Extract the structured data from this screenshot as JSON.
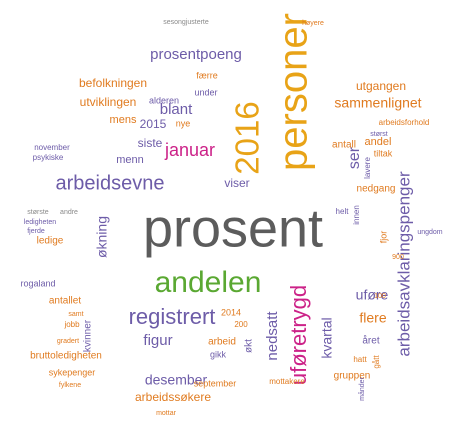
{
  "words": [
    "prosent",
    "personer",
    "2016",
    "andelen",
    "uføretrygd",
    "arbeidsevne",
    "registrert",
    "arbeidsavklaringspenger",
    "januar",
    "prosentpoeng",
    "sammenlignet",
    "befolkningen",
    "utviklingen",
    "blant",
    "2015",
    "mens",
    "siste",
    "menn",
    "ser",
    "viser",
    "økning",
    "uføre",
    "flere",
    "figur",
    "nedsatt",
    "kvartal",
    "desember",
    "arbeidssøkere",
    "utgangen",
    "andel",
    "antall",
    "nedgang",
    "ledige",
    "rogaland",
    "antallet",
    "kvinner",
    "bruttoledigheten",
    "sykepenger",
    "arbeid",
    "gikk",
    "økt",
    "mottakere",
    "september",
    "2014",
    "200",
    "året",
    "gruppen",
    "fjor",
    "tiltak",
    "november",
    "psykiske",
    "alderen",
    "nye",
    "under",
    "færre",
    "arbeidsforhold",
    "størst",
    "sesongjusterte",
    "høyere",
    "ledigheten",
    "fjerde",
    "andre",
    "største",
    "gradert",
    "mottar",
    "fylkene",
    "samt",
    "helt",
    "innen",
    "lavere",
    "jobb",
    "100",
    "900",
    "hatt",
    "gått",
    "månder",
    "ungdom"
  ]
}
